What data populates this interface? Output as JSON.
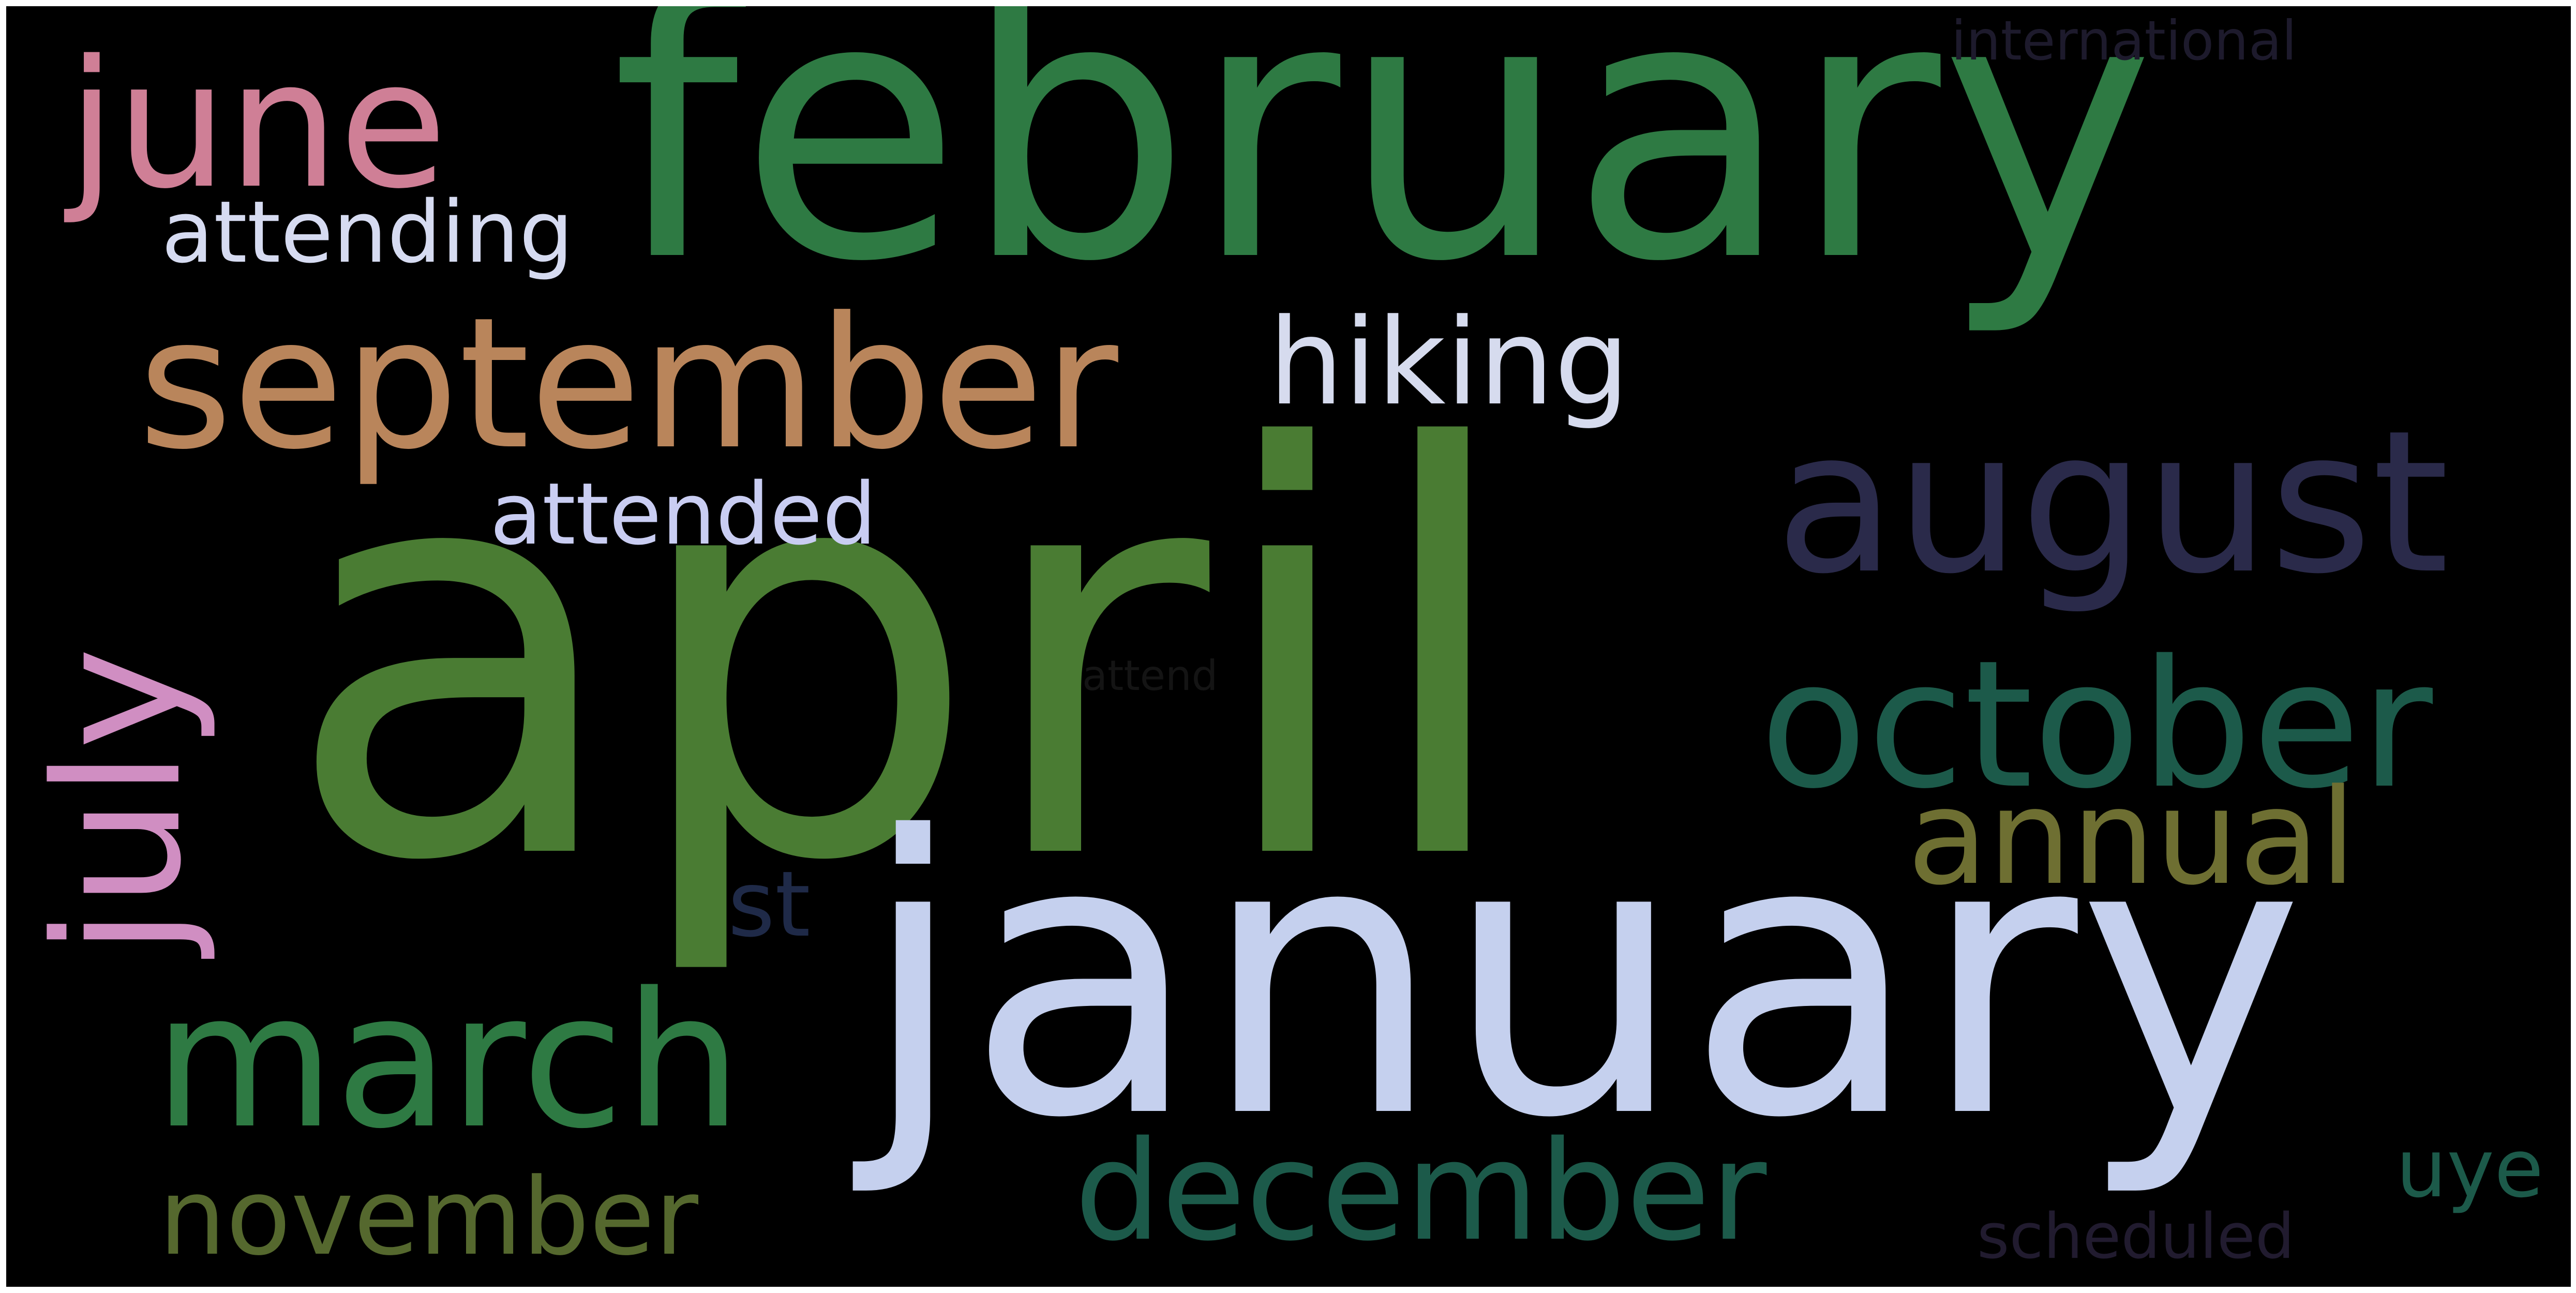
{
  "words": [
    {
      "text": "february",
      "color": "#2e7a43"
    },
    {
      "text": "april",
      "color": "#4a7c33"
    },
    {
      "text": "january",
      "color": "#c5d0ee"
    },
    {
      "text": "september",
      "color": "#b9855b"
    },
    {
      "text": "august",
      "color": "#2a2a4a"
    },
    {
      "text": "june",
      "color": "#cf7f96"
    },
    {
      "text": "july",
      "color": "#d08ec2"
    },
    {
      "text": "october",
      "color": "#1c5a4a"
    },
    {
      "text": "march",
      "color": "#2e7a43"
    },
    {
      "text": "december",
      "color": "#1c5a4a"
    },
    {
      "text": "annual",
      "color": "#6e6f32"
    },
    {
      "text": "november",
      "color": "#55682e"
    },
    {
      "text": "hiking",
      "color": "#d6dbee"
    },
    {
      "text": "attending",
      "color": "#d6dbf1"
    },
    {
      "text": "attended",
      "color": "#c9cdf2"
    },
    {
      "text": "international",
      "color": "#1d1a2c"
    },
    {
      "text": "st",
      "color": "#1f2a48"
    },
    {
      "text": "uye",
      "color": "#1c5a4a"
    },
    {
      "text": "scheduled",
      "color": "#211b2f"
    },
    {
      "text": "attend",
      "color": "#141414"
    }
  ]
}
